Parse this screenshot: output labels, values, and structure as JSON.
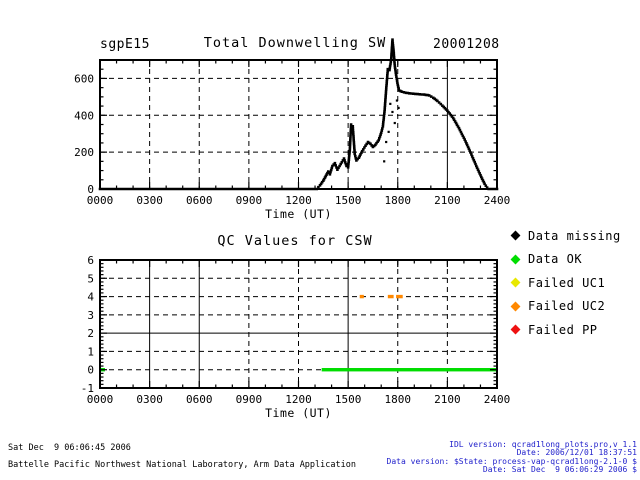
{
  "header": {
    "site_label": "sgpE15",
    "date_label": "20001208"
  },
  "colors": {
    "frame": "#000000",
    "data_missing": "#000000",
    "data_ok": "#00dd00",
    "failed_uc1": "#e8e800",
    "failed_uc2": "#ff8800",
    "failed_pp": "#ee1111",
    "footer_info": "#2222cc"
  },
  "legend": {
    "items": [
      {
        "label": "Data missing",
        "color_key": "data_missing"
      },
      {
        "label": "Data OK",
        "color_key": "data_ok"
      },
      {
        "label": "Failed UC1",
        "color_key": "failed_uc1"
      },
      {
        "label": "Failed UC2",
        "color_key": "failed_uc2"
      },
      {
        "label": "Failed PP",
        "color_key": "failed_pp"
      }
    ]
  },
  "footer": {
    "left_lines": [
      "Sat Dec  9 06:06:45 2006",
      "Battelle Pacific Northwest National Laboratory, Arm Data Application"
    ],
    "right_lines": [
      "IDL version: qcrad1long_plots.pro,v 1.1",
      "Date: 2006/12/01 18:37:51",
      "Data version: $State: process-vap-qcrad1long-2.1-0 $",
      "Date: Sat Dec  9 06:06:29 2006 $"
    ]
  },
  "chart_data": [
    {
      "type": "scatter",
      "title": "Total Downwelling SW",
      "xlabel": "Time (UT)",
      "ylabel": "",
      "xlim": [
        0,
        24
      ],
      "ylim": [
        0,
        700
      ],
      "x_tick_values": [
        0,
        3,
        6,
        9,
        12,
        15,
        18,
        21,
        24
      ],
      "x_tick_labels": [
        "0000",
        "0300",
        "0600",
        "0900",
        "1200",
        "1500",
        "1800",
        "2100",
        "2400"
      ],
      "y_tick_values": [
        0,
        200,
        400,
        600
      ],
      "y_tick_labels": [
        "0",
        "200",
        "400",
        "600"
      ],
      "x_minor_step": 1,
      "y_minor_step": 50,
      "grid_vlines_dashed": [
        3,
        6,
        9,
        12,
        15,
        18
      ],
      "grid_vlines_solid": [
        21
      ],
      "grid_hlines_dashed": [
        200,
        400,
        600
      ],
      "grid_hlines_solid": [],
      "legend_position": "none",
      "series": [
        {
          "name": "total_downwelling_sw",
          "color_key": "data_missing",
          "points": [
            [
              0,
              0
            ],
            [
              13.1,
              0
            ],
            [
              13.3,
              20
            ],
            [
              13.5,
              45
            ],
            [
              13.65,
              70
            ],
            [
              13.8,
              95
            ],
            [
              13.9,
              80
            ],
            [
              14.05,
              125
            ],
            [
              14.2,
              140
            ],
            [
              14.35,
              105
            ],
            [
              14.55,
              135
            ],
            [
              14.75,
              165
            ],
            [
              14.9,
              125
            ],
            [
              15.0,
              118
            ],
            [
              15.1,
              210
            ],
            [
              15.18,
              350
            ],
            [
              15.28,
              340
            ],
            [
              15.4,
              190
            ],
            [
              15.5,
              155
            ],
            [
              15.65,
              170
            ],
            [
              15.85,
              205
            ],
            [
              16.05,
              235
            ],
            [
              16.2,
              255
            ],
            [
              16.35,
              245
            ],
            [
              16.5,
              228
            ],
            [
              16.65,
              240
            ],
            [
              16.85,
              265
            ],
            [
              17.0,
              305
            ],
            [
              17.1,
              340
            ],
            [
              17.2,
              420
            ],
            [
              17.3,
              540
            ],
            [
              17.4,
              650
            ],
            [
              17.5,
              645
            ],
            [
              17.6,
              700
            ],
            [
              17.68,
              810
            ],
            [
              17.75,
              750
            ],
            [
              17.82,
              670
            ],
            [
              17.9,
              620
            ],
            [
              17.98,
              575
            ],
            [
              18.08,
              535
            ],
            [
              18.25,
              528
            ],
            [
              18.5,
              522
            ],
            [
              18.8,
              518
            ],
            [
              19.2,
              515
            ],
            [
              19.6,
              512
            ],
            [
              19.9,
              508
            ],
            [
              20.15,
              495
            ],
            [
              20.4,
              478
            ],
            [
              20.7,
              452
            ],
            [
              21.0,
              425
            ],
            [
              21.35,
              385
            ],
            [
              21.7,
              330
            ],
            [
              22.05,
              268
            ],
            [
              22.4,
              198
            ],
            [
              22.75,
              125
            ],
            [
              23.05,
              65
            ],
            [
              23.25,
              28
            ],
            [
              23.4,
              8
            ],
            [
              23.5,
              0
            ],
            [
              24,
              0
            ]
          ]
        }
      ],
      "scatter_points": [
        [
          17.18,
          150
        ],
        [
          17.3,
          255
        ],
        [
          17.45,
          310
        ],
        [
          17.55,
          462
        ],
        [
          17.68,
          418
        ],
        [
          17.82,
          358
        ],
        [
          17.95,
          480
        ],
        [
          18.05,
          440
        ]
      ]
    },
    {
      "type": "scatter",
      "title": "QC Values for CSW",
      "xlabel": "Time (UT)",
      "ylabel": "",
      "xlim": [
        0,
        24
      ],
      "ylim": [
        -1,
        6
      ],
      "x_tick_values": [
        0,
        3,
        6,
        9,
        12,
        15,
        18,
        21,
        24
      ],
      "x_tick_labels": [
        "0000",
        "0300",
        "0600",
        "0900",
        "1200",
        "1500",
        "1800",
        "2100",
        "2400"
      ],
      "y_tick_values": [
        -1,
        0,
        1,
        2,
        3,
        4,
        5,
        6
      ],
      "y_tick_labels": [
        "-1",
        "0",
        "1",
        "2",
        "3",
        "4",
        "5",
        "6"
      ],
      "x_minor_step": 1,
      "y_minor_step": 0.2,
      "grid_vlines_dashed": [
        9,
        12,
        18,
        21
      ],
      "grid_vlines_solid": [
        3,
        6,
        15
      ],
      "grid_hlines_dashed": [
        0,
        1,
        3,
        4,
        5
      ],
      "grid_hlines_solid": [
        2
      ],
      "legend_position": "right",
      "qc_segments": [
        {
          "y": 0,
          "x0": 0.0,
          "x1": 0.3,
          "color_key": "data_ok",
          "meaning": "Data OK"
        },
        {
          "y": 0,
          "x0": 13.4,
          "x1": 24.0,
          "color_key": "data_ok",
          "meaning": "Data OK"
        },
        {
          "y": 4,
          "x0": 15.7,
          "x1": 15.95,
          "color_key": "failed_uc2",
          "meaning": "Failed UC2"
        },
        {
          "y": 4,
          "x0": 17.4,
          "x1": 17.75,
          "color_key": "failed_uc2",
          "meaning": "Failed UC2"
        },
        {
          "y": 4,
          "x0": 17.9,
          "x1": 18.3,
          "color_key": "failed_uc2",
          "meaning": "Failed UC2"
        }
      ]
    }
  ]
}
